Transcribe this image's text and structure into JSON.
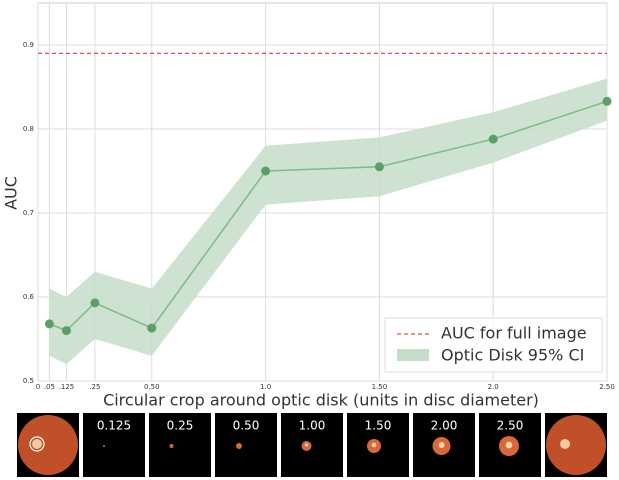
{
  "chart_data": {
    "type": "line",
    "x_label": "Circular crop around optic disk (units in disc diameter)",
    "y_label": "AUC",
    "x": [
      0.05,
      0.125,
      0.25,
      0.5,
      1.0,
      1.5,
      2.0,
      2.5
    ],
    "values": [
      0.568,
      0.56,
      0.593,
      0.563,
      0.75,
      0.755,
      0.788,
      0.833
    ],
    "color": "#7dba85",
    "marker_color": "#5c9e68",
    "band": {
      "name": "Optic Disk 95% CI",
      "color": "#c6ddc9",
      "lower": [
        0.53,
        0.52,
        0.55,
        0.53,
        0.71,
        0.72,
        0.76,
        0.81
      ],
      "upper": [
        0.61,
        0.6,
        0.63,
        0.61,
        0.78,
        0.79,
        0.82,
        0.86
      ]
    },
    "reference": {
      "name": "AUC for full image",
      "value": 0.89,
      "color": "#e05050"
    },
    "xlim": [
      0,
      2.5
    ],
    "xticks": [
      0,
      {
        "value": 0.05,
        "label": ".05"
      },
      {
        "value": 0.125,
        "label": ".125"
      },
      {
        "value": 0.25,
        "label": ".25"
      },
      {
        "value": 0.5,
        "label": "0.50"
      },
      {
        "value": 1.0,
        "label": "1.0"
      },
      {
        "value": 1.5,
        "label": "1.50"
      },
      {
        "value": 2.0,
        "label": "2.0"
      },
      {
        "value": 2.5,
        "label": "2.50"
      }
    ],
    "ylim": [
      0.5,
      0.95
    ],
    "yticks": [
      0.5,
      0.6,
      0.7,
      0.8,
      0.9
    ],
    "grid": true,
    "legend": "lower right"
  },
  "image_strip": {
    "labels": [
      "0.125",
      "0.25",
      "0.50",
      "1.00",
      "1.50",
      "2.00",
      "2.50"
    ]
  }
}
